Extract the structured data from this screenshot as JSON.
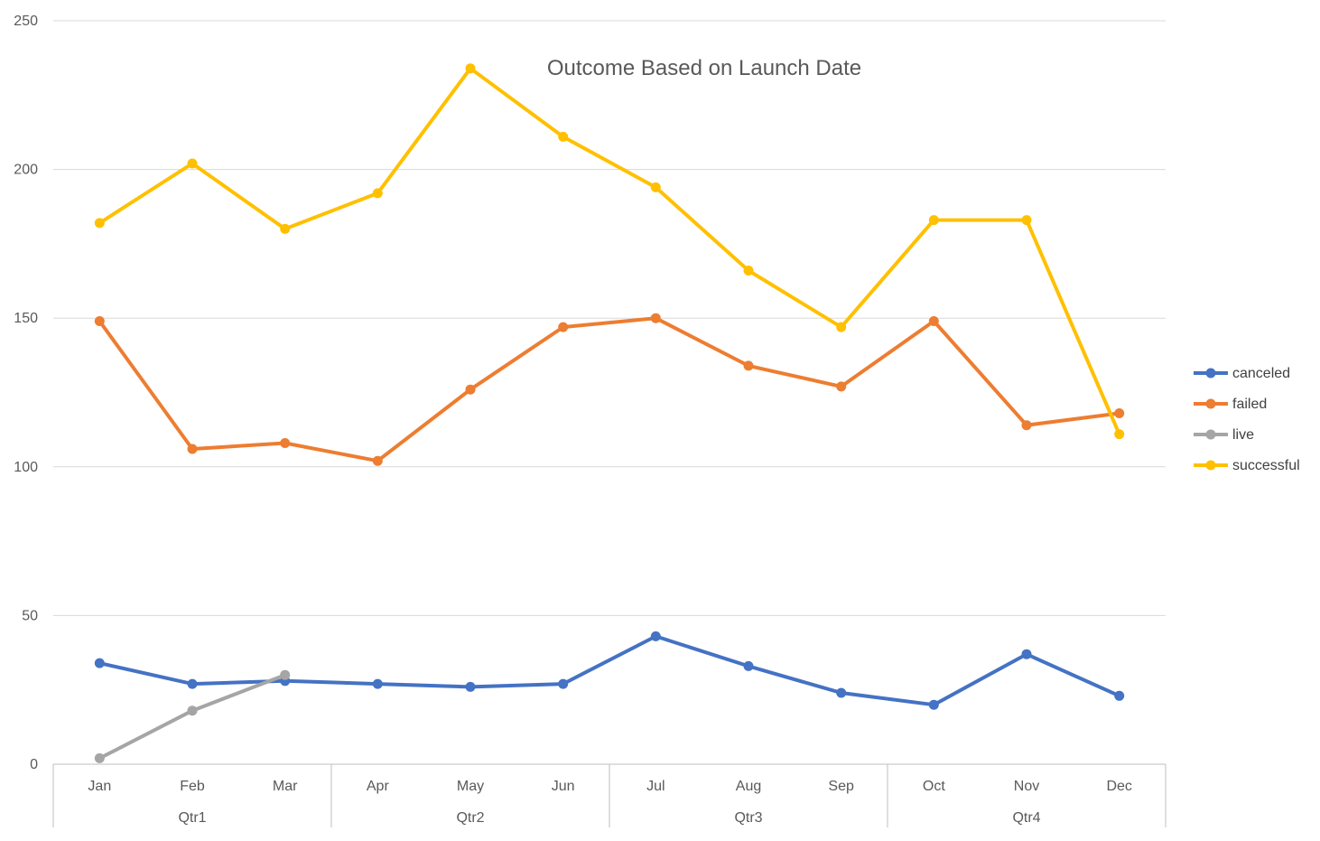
{
  "chart_data": {
    "type": "line",
    "title": "Outcome Based on Launch Date",
    "categories": [
      "Jan",
      "Feb",
      "Mar",
      "Apr",
      "May",
      "Jun",
      "Jul",
      "Aug",
      "Sep",
      "Oct",
      "Nov",
      "Dec"
    ],
    "groups": [
      {
        "label": "Qtr1",
        "months": [
          "Jan",
          "Feb",
          "Mar"
        ]
      },
      {
        "label": "Qtr2",
        "months": [
          "Apr",
          "May",
          "Jun"
        ]
      },
      {
        "label": "Qtr3",
        "months": [
          "Jul",
          "Aug",
          "Sep"
        ]
      },
      {
        "label": "Qtr4",
        "months": [
          "Oct",
          "Nov",
          "Dec"
        ]
      }
    ],
    "ylim": [
      0,
      250
    ],
    "yticks": [
      0,
      50,
      100,
      150,
      200,
      250
    ],
    "grid": true,
    "legend_position": "right",
    "series": [
      {
        "name": "canceled",
        "color": "#4472c4",
        "values": [
          34,
          27,
          28,
          27,
          26,
          27,
          43,
          33,
          24,
          20,
          37,
          23
        ]
      },
      {
        "name": "failed",
        "color": "#ed7d31",
        "values": [
          149,
          106,
          108,
          102,
          126,
          147,
          150,
          134,
          127,
          149,
          114,
          118
        ]
      },
      {
        "name": "live",
        "color": "#a5a5a5",
        "values": [
          2,
          18,
          30,
          null,
          null,
          null,
          null,
          null,
          null,
          null,
          null,
          null
        ]
      },
      {
        "name": "successful",
        "color": "#ffc000",
        "values": [
          182,
          202,
          180,
          192,
          234,
          211,
          194,
          166,
          147,
          183,
          183,
          111
        ]
      }
    ]
  }
}
